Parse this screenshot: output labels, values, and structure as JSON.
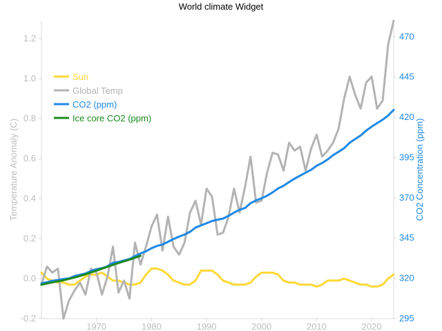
{
  "chart_data": {
    "type": "line",
    "title": "World climate Widget",
    "xlabel": "",
    "ylabel_left": "Temperature Anomaly (C)",
    "ylabel_right": "CO2 Concentration (ppm)",
    "xlim": [
      1960,
      2024
    ],
    "ylim_left": [
      -0.2,
      1.29
    ],
    "ylim_right": [
      295,
      480
    ],
    "x_ticks": [
      1970,
      1980,
      1990,
      2000,
      2010,
      2020
    ],
    "y_ticks_left": [
      "-0.2",
      "0.0",
      "0.2",
      "0.4",
      "0.6",
      "0.8",
      "1.0",
      "1.2"
    ],
    "y_ticks_right": [
      "295",
      "320",
      "345",
      "370",
      "395",
      "420",
      "445",
      "470"
    ],
    "grid": false,
    "legend_position": "upper-left",
    "series": [
      {
        "name": "Global Temp",
        "axis": "left",
        "color": "#b3b3b3",
        "x": [
          1960,
          1961,
          1962,
          1963,
          1964,
          1965,
          1966,
          1967,
          1968,
          1969,
          1970,
          1971,
          1972,
          1973,
          1974,
          1975,
          1976,
          1977,
          1978,
          1979,
          1980,
          1981,
          1982,
          1983,
          1984,
          1985,
          1986,
          1987,
          1988,
          1989,
          1990,
          1991,
          1992,
          1993,
          1994,
          1995,
          1996,
          1997,
          1998,
          1999,
          2000,
          2001,
          2002,
          2003,
          2004,
          2005,
          2006,
          2007,
          2008,
          2009,
          2010,
          2011,
          2012,
          2013,
          2014,
          2015,
          2016,
          2017,
          2018,
          2019,
          2020,
          2021,
          2022,
          2023,
          2024
        ],
        "y": [
          -0.03,
          0.06,
          0.03,
          0.05,
          -0.2,
          -0.11,
          -0.06,
          -0.02,
          -0.08,
          0.05,
          0.03,
          -0.08,
          0.01,
          0.16,
          -0.07,
          -0.01,
          -0.1,
          0.18,
          0.07,
          0.16,
          0.26,
          0.32,
          0.14,
          0.31,
          0.16,
          0.12,
          0.18,
          0.33,
          0.39,
          0.27,
          0.45,
          0.41,
          0.22,
          0.23,
          0.31,
          0.45,
          0.33,
          0.46,
          0.61,
          0.38,
          0.39,
          0.53,
          0.63,
          0.62,
          0.54,
          0.68,
          0.64,
          0.66,
          0.54,
          0.65,
          0.72,
          0.61,
          0.64,
          0.68,
          0.75,
          0.9,
          1.01,
          0.92,
          0.85,
          0.98,
          1.01,
          0.85,
          0.89,
          1.17,
          1.29
        ]
      },
      {
        "name": "CO2 (ppm)",
        "axis": "right",
        "color": "#1e88e5",
        "x": [
          1960,
          1961,
          1962,
          1963,
          1964,
          1965,
          1966,
          1967,
          1968,
          1969,
          1970,
          1971,
          1972,
          1973,
          1974,
          1975,
          1976,
          1977,
          1978,
          1979,
          1980,
          1981,
          1982,
          1983,
          1984,
          1985,
          1986,
          1987,
          1988,
          1989,
          1990,
          1991,
          1992,
          1993,
          1994,
          1995,
          1996,
          1997,
          1998,
          1999,
          2000,
          2001,
          2002,
          2003,
          2004,
          2005,
          2006,
          2007,
          2008,
          2009,
          2010,
          2011,
          2012,
          2013,
          2014,
          2015,
          2016,
          2017,
          2018,
          2019,
          2020,
          2021,
          2022,
          2023,
          2024
        ],
        "y": [
          316.9,
          317.6,
          318.5,
          319.0,
          319.6,
          320.0,
          321.4,
          322.2,
          323.0,
          324.6,
          325.7,
          326.3,
          327.5,
          329.7,
          330.2,
          331.1,
          332.0,
          333.8,
          335.4,
          336.8,
          338.7,
          340.1,
          341.0,
          342.7,
          344.4,
          345.9,
          347.2,
          348.9,
          351.5,
          352.9,
          354.2,
          355.6,
          356.4,
          357.1,
          358.8,
          360.8,
          362.6,
          363.7,
          366.7,
          368.4,
          369.7,
          371.3,
          373.4,
          375.8,
          377.5,
          379.8,
          381.9,
          383.8,
          385.6,
          387.4,
          389.9,
          391.6,
          393.8,
          396.5,
          398.6,
          400.8,
          404.2,
          406.5,
          408.7,
          411.7,
          414.2,
          416.4,
          418.5,
          421.1,
          424.6
        ]
      },
      {
        "name": "Sun",
        "axis": "left",
        "color": "#fdd835",
        "x": [
          1960,
          1961,
          1962,
          1963,
          1964,
          1965,
          1966,
          1967,
          1968,
          1969,
          1970,
          1971,
          1972,
          1973,
          1974,
          1975,
          1976,
          1977,
          1978,
          1979,
          1980,
          1981,
          1982,
          1983,
          1984,
          1985,
          1986,
          1987,
          1988,
          1989,
          1990,
          1991,
          1992,
          1993,
          1994,
          1995,
          1996,
          1997,
          1998,
          1999,
          2000,
          2001,
          2002,
          2003,
          2004,
          2005,
          2006,
          2007,
          2008,
          2009,
          2010,
          2011,
          2012,
          2013,
          2014,
          2015,
          2016,
          2017,
          2018,
          2019,
          2020,
          2021,
          2022,
          2023,
          2024
        ],
        "y": [
          0.03,
          0.0,
          -0.01,
          -0.02,
          -0.02,
          -0.03,
          -0.03,
          -0.01,
          0.01,
          0.02,
          0.02,
          0.03,
          0.01,
          -0.01,
          -0.01,
          -0.02,
          -0.03,
          -0.03,
          -0.02,
          0.02,
          0.05,
          0.05,
          0.04,
          0.02,
          -0.01,
          -0.02,
          -0.03,
          -0.03,
          -0.01,
          0.04,
          0.04,
          0.04,
          0.02,
          -0.01,
          -0.02,
          -0.03,
          -0.03,
          -0.03,
          -0.02,
          0.01,
          0.03,
          0.03,
          0.03,
          0.02,
          -0.01,
          -0.02,
          -0.02,
          -0.03,
          -0.03,
          -0.03,
          -0.04,
          -0.03,
          -0.01,
          -0.01,
          -0.01,
          0.0,
          -0.01,
          -0.02,
          -0.03,
          -0.03,
          -0.04,
          -0.04,
          -0.03,
          0.0,
          0.02
        ]
      },
      {
        "name": "Ice core CO2 (ppm)",
        "axis": "right",
        "color": "#1b8a1b",
        "x": [
          1960,
          1962,
          1964,
          1966,
          1968,
          1970,
          1972,
          1974,
          1976,
          1978
        ],
        "y": [
          316.0,
          317.5,
          318.8,
          320.5,
          322.5,
          324.8,
          327.2,
          329.5,
          331.6,
          334.0
        ]
      }
    ]
  }
}
